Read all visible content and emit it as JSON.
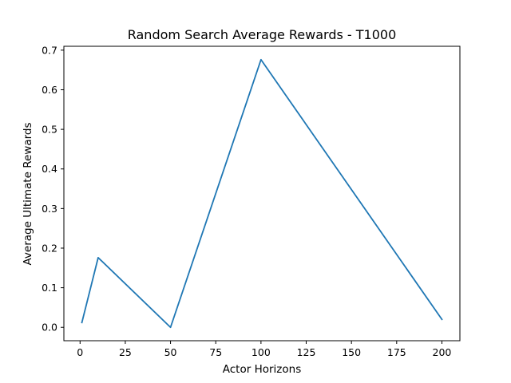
{
  "chart_data": {
    "type": "line",
    "title": "Random Search Average Rewards - T1000",
    "xlabel": "Actor Horizons",
    "ylabel": "Average Ultimate Rewards",
    "x": [
      1,
      10,
      50,
      100,
      200
    ],
    "series": [
      {
        "values": [
          0.012,
          0.176,
          0.0,
          0.676,
          0.02
        ]
      }
    ],
    "xlim": [
      -8.95,
      209.95
    ],
    "ylim": [
      -0.0338,
      0.7098
    ],
    "xticks": [
      0,
      25,
      50,
      75,
      100,
      125,
      150,
      175,
      200
    ],
    "yticks": [
      0.0,
      0.1,
      0.2,
      0.3,
      0.4,
      0.5,
      0.6,
      0.7
    ],
    "xtick_labels": [
      "0",
      "25",
      "50",
      "75",
      "100",
      "125",
      "150",
      "175",
      "200"
    ],
    "ytick_labels": [
      "0.0",
      "0.1",
      "0.2",
      "0.3",
      "0.4",
      "0.5",
      "0.6",
      "0.7"
    ],
    "grid": false,
    "legend": false,
    "line_color": "#1f77b4"
  }
}
